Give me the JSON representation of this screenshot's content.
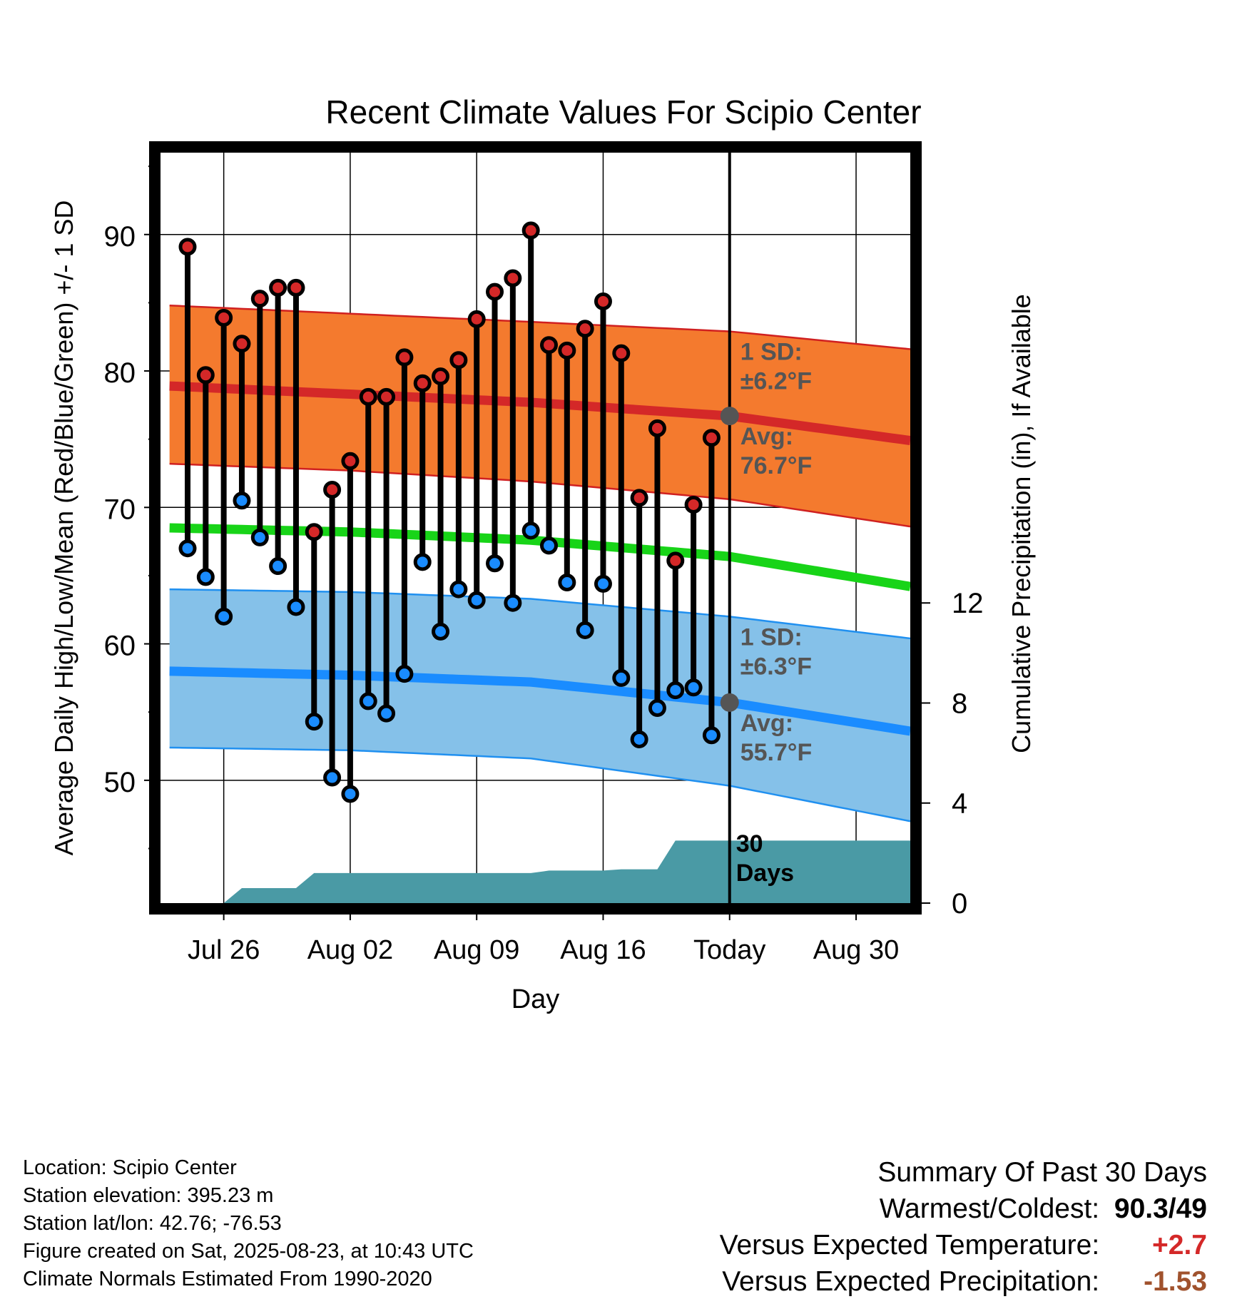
{
  "chart_data": {
    "type": "line",
    "title": "Recent Climate Values For Scipio Center",
    "xlabel": "Day",
    "ylabel": "Average Daily High/Low/Mean (Red/Blue/Green) +/- 1 SD",
    "y2label": "Cumulative Precipitation (in), If Available",
    "ylim": [
      41,
      96
    ],
    "y2lim": [
      0,
      30
    ],
    "yticks": [
      50,
      60,
      70,
      80,
      90
    ],
    "y2ticks": [
      0,
      4,
      8,
      12
    ],
    "x_range_days": [
      -0.5,
      41
    ],
    "xticks": [
      {
        "day": 3,
        "label": "Jul 26"
      },
      {
        "day": 10,
        "label": "Aug 02"
      },
      {
        "day": 17,
        "label": "Aug 09"
      },
      {
        "day": 24,
        "label": "Aug 16"
      },
      {
        "day": 31,
        "label": "Today"
      },
      {
        "day": 38,
        "label": "Aug 30"
      }
    ],
    "today_day": 31,
    "daily_high": [
      89.1,
      79.7,
      83.9,
      82.0,
      85.3,
      86.1,
      86.1,
      68.2,
      71.3,
      73.4,
      78.1,
      78.1,
      81.0,
      79.1,
      79.6,
      80.8,
      83.8,
      85.8,
      86.8,
      90.3,
      81.9,
      81.5,
      83.1,
      85.1,
      81.3,
      70.7,
      75.8,
      66.1,
      70.2,
      75.1
    ],
    "daily_low": [
      67.0,
      64.9,
      62.0,
      70.5,
      67.8,
      65.7,
      62.7,
      54.3,
      50.2,
      49.0,
      55.8,
      54.9,
      57.8,
      66.0,
      60.9,
      64.0,
      63.2,
      65.9,
      63.0,
      68.3,
      67.2,
      64.5,
      61.0,
      64.4,
      57.5,
      53.0,
      55.3,
      56.6,
      56.8,
      53.3
    ],
    "normals": {
      "days": [
        0,
        10,
        20,
        31,
        41
      ],
      "high_avg": [
        78.9,
        78.3,
        77.7,
        76.7,
        74.9
      ],
      "high_upper": [
        84.8,
        84.2,
        83.6,
        82.9,
        81.6
      ],
      "high_lower": [
        73.2,
        72.7,
        71.9,
        70.6,
        68.6
      ],
      "mean_avg": [
        68.5,
        68.2,
        67.6,
        66.4,
        64.2
      ],
      "low_avg": [
        58.0,
        57.7,
        57.2,
        55.7,
        53.6
      ],
      "low_upper": [
        64.0,
        63.8,
        63.3,
        62.0,
        60.4
      ],
      "low_lower": [
        52.4,
        52.2,
        51.6,
        49.6,
        47.0
      ]
    },
    "precip_steps": [
      {
        "day": 3,
        "value": 0
      },
      {
        "day": 4,
        "value": 0.6
      },
      {
        "day": 7,
        "value": 0.6
      },
      {
        "day": 8,
        "value": 1.2
      },
      {
        "day": 20,
        "value": 1.2
      },
      {
        "day": 21,
        "value": 1.3
      },
      {
        "day": 24,
        "value": 1.3
      },
      {
        "day": 25,
        "value": 1.35
      },
      {
        "day": 27,
        "value": 1.35
      },
      {
        "day": 28,
        "value": 2.5
      },
      {
        "day": 41,
        "value": 2.5
      }
    ],
    "annotations": {
      "high_sd_label": "1 SD:",
      "high_sd_value": "±6.2°F",
      "high_avg_label": "Avg:",
      "high_avg_value": "76.7°F",
      "low_sd_label": "1 SD:",
      "low_sd_value": "±6.3°F",
      "low_avg_label": "Avg:",
      "low_avg_value": "55.7°F",
      "window_num": "30",
      "window_unit": "Days"
    },
    "colors": {
      "high_band": "#f47a2e",
      "high_edge": "#d02020",
      "high_line": "#d42828",
      "mean_line": "#18d418",
      "low_band": "#85c1e9",
      "low_edge": "#2090f0",
      "low_line": "#1a8cff",
      "precip": "#4a9aa5",
      "high_dot": "#d42828",
      "low_dot": "#1a8cff",
      "today_dot": "#555555",
      "annotation_text": "#555555"
    }
  },
  "footer": {
    "location": "Location: Scipio Center",
    "elevation": "Station elevation: 395.23 m",
    "latlon": "Station lat/lon: 42.76; -76.53",
    "created": "Figure created on Sat, 2025-08-23, at 10:43 UTC",
    "normals": "Climate Normals Estimated From 1990-2020"
  },
  "summary": {
    "heading": "Summary Of Past 30 Days",
    "warm_cold_label": "Warmest/Coldest:",
    "warm_cold_value": "90.3/49",
    "temp_label": "Versus Expected Temperature:",
    "temp_value": "+2.7",
    "temp_color": "#d42828",
    "precip_label": "Versus Expected Precipitation:",
    "precip_value": "-1.53",
    "precip_color": "#a0522d"
  }
}
